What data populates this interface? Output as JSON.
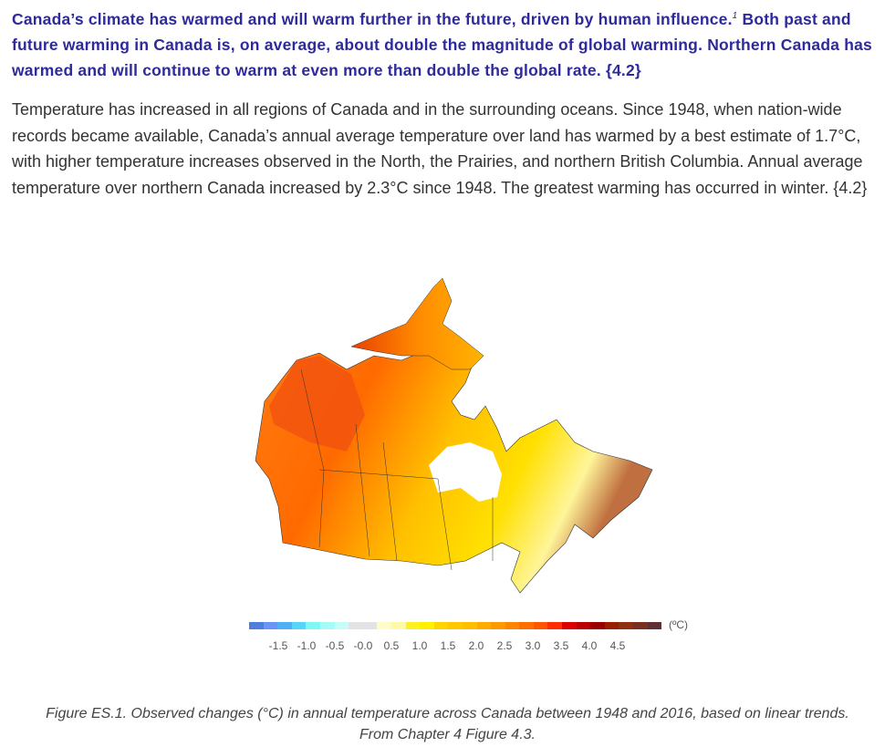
{
  "lead": {
    "text_before": "Canada’s climate has warmed and will warm further in the future, driven by human influence.",
    "footnote": "1",
    "text_after": " Both past and future warming in Canada is, on average, about double the magnitude of global warming. Northern Canada has warmed and will continue to warm at even more than double the global rate. {4.2}"
  },
  "body": "Temperature has increased in all regions of Canada and in the surrounding oceans. Since 1948, when nation-wide records became available, Canada’s annual average temperature over land has warmed by a best estimate of 1.7°C, with higher temperature increases observed in the North, the Prairies, and northern British Columbia. Annual average temperature over northern Canada increased by 2.3°C since 1948. The greatest warming has occurred in winter. {4.2}",
  "figure": {
    "colorbar_unit": "(ºC)",
    "colorbar_colors": [
      "#4f7fdc",
      "#6a94f5",
      "#4fb0f5",
      "#55d6f7",
      "#7ef7f7",
      "#a6fbf9",
      "#c7fdf9",
      "#e3e3e3",
      "#e3e3e3",
      "#fffdc7",
      "#fef9a6",
      "#fdf21e",
      "#fff000",
      "#ffd500",
      "#ffc800",
      "#ffbf00",
      "#ffab00",
      "#ff9900",
      "#ff8400",
      "#ff6d00",
      "#ff5500",
      "#ff2d00",
      "#dd0000",
      "#bb0000",
      "#990000",
      "#962000",
      "#8f3010",
      "#7a3020",
      "#5e3030"
    ],
    "tick_labels": [
      "-1.5",
      "-1.0",
      "-0.5",
      "-0.0",
      "0.5",
      "1.0",
      "1.5",
      "2.0",
      "2.5",
      "3.0",
      "3.5",
      "4.0",
      "4.5"
    ],
    "caption_line1": "Figure ES.1. Observed changes (°C) in annual temperature across Canada between 1948 and 2016, based on linear trends.",
    "caption_line2": "From Chapter 4 Figure 4.3."
  }
}
